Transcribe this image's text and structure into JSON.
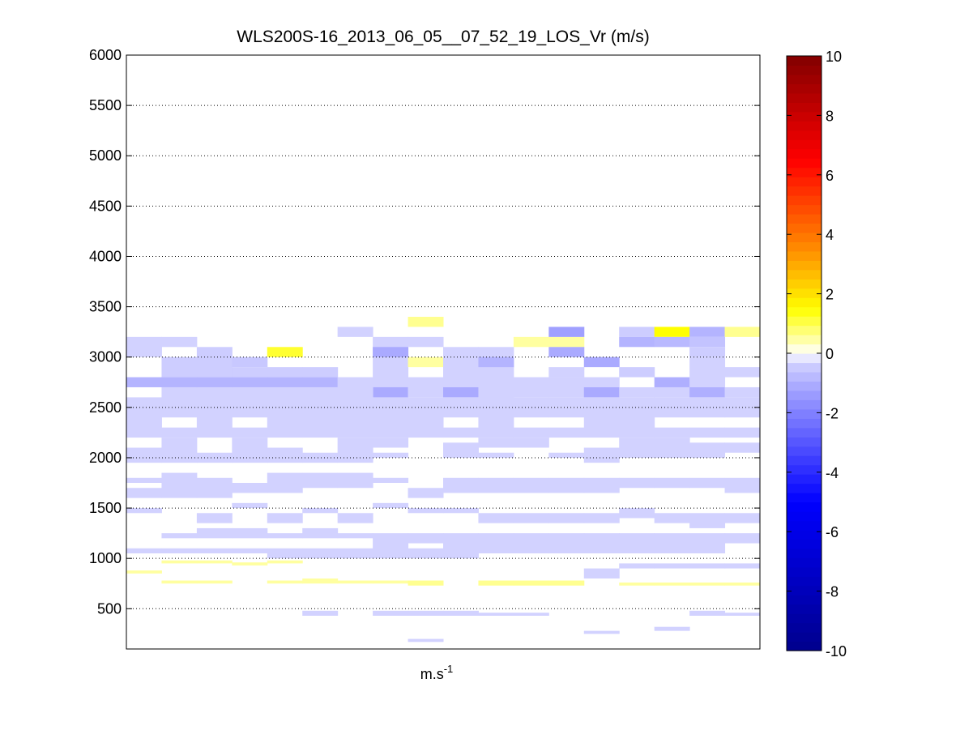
{
  "chart_data": {
    "type": "heatmap",
    "title": "WLS200S-16_2013_06_05__07_52_19_LOS_Vr (m/s)",
    "xlabel": {
      "base": "m.s",
      "superscript": "-1"
    },
    "ylabel": "",
    "ylim": [
      100,
      6000
    ],
    "yticks": [
      500,
      1000,
      1500,
      2000,
      2500,
      3000,
      3500,
      4000,
      4500,
      5000,
      5500,
      6000
    ],
    "y_grid": "dotted",
    "colorbar": {
      "range": [
        -10,
        10
      ],
      "ticks": [
        -10,
        -8,
        -6,
        -4,
        -2,
        0,
        2,
        4,
        6,
        8,
        10
      ],
      "position": "right",
      "colormap": "blue-white-yellow-red (jet-like, white at 0)"
    },
    "columns": 18,
    "series": [
      {
        "col": 0,
        "y0": 3000,
        "y1": 3200,
        "v": -0.3
      },
      {
        "col": 1,
        "y0": 3100,
        "y1": 3200,
        "v": -0.3
      },
      {
        "col": 0,
        "y0": 2700,
        "y1": 2800,
        "v": -0.9
      },
      {
        "col": 1,
        "y0": 2700,
        "y1": 2800,
        "v": -0.9
      },
      {
        "col": 2,
        "y0": 2700,
        "y1": 2800,
        "v": -0.9
      },
      {
        "col": 3,
        "y0": 2700,
        "y1": 2800,
        "v": -0.9
      },
      {
        "col": 4,
        "y0": 2700,
        "y1": 2800,
        "v": -0.9
      },
      {
        "col": 5,
        "y0": 2700,
        "y1": 2800,
        "v": -0.9
      },
      {
        "col": 1,
        "y0": 2800,
        "y1": 3000,
        "v": -0.4
      },
      {
        "col": 2,
        "y0": 2800,
        "y1": 3100,
        "v": -0.4
      },
      {
        "col": 3,
        "y0": 2800,
        "y1": 2900,
        "v": -0.4
      },
      {
        "col": 3,
        "y0": 2900,
        "y1": 3000,
        "v": -0.5
      },
      {
        "col": 4,
        "y0": 2800,
        "y1": 2900,
        "v": -0.4
      },
      {
        "col": 5,
        "y0": 2800,
        "y1": 2900,
        "v": -0.4
      },
      {
        "col": 4,
        "y0": 3000,
        "y1": 3100,
        "v": 1.2
      },
      {
        "col": 6,
        "y0": 2700,
        "y1": 2800,
        "v": -0.3
      },
      {
        "col": 6,
        "y0": 3200,
        "y1": 3300,
        "v": -0.3
      },
      {
        "col": 7,
        "y0": 2600,
        "y1": 3200,
        "v": -0.3
      },
      {
        "col": 7,
        "y0": 3000,
        "y1": 3100,
        "v": -1.1
      },
      {
        "col": 7,
        "y0": 2600,
        "y1": 2700,
        "v": -1.1
      },
      {
        "col": 8,
        "y0": 3300,
        "y1": 3400,
        "v": 0.6
      },
      {
        "col": 8,
        "y0": 2900,
        "y1": 3000,
        "v": 0.5
      },
      {
        "col": 8,
        "y0": 3100,
        "y1": 3200,
        "v": -0.3
      },
      {
        "col": 8,
        "y0": 2600,
        "y1": 2800,
        "v": -0.3
      },
      {
        "col": 9,
        "y0": 2700,
        "y1": 3100,
        "v": -0.3
      },
      {
        "col": 9,
        "y0": 2600,
        "y1": 2700,
        "v": -1.1
      },
      {
        "col": 10,
        "y0": 2700,
        "y1": 3100,
        "v": -0.3
      },
      {
        "col": 10,
        "y0": 2900,
        "y1": 3000,
        "v": -0.9
      },
      {
        "col": 11,
        "y0": 3100,
        "y1": 3200,
        "v": 0.5
      },
      {
        "col": 11,
        "y0": 2600,
        "y1": 2800,
        "v": -0.3
      },
      {
        "col": 12,
        "y0": 3100,
        "y1": 3200,
        "v": 0.5
      },
      {
        "col": 12,
        "y0": 3200,
        "y1": 3300,
        "v": -1.3
      },
      {
        "col": 12,
        "y0": 3000,
        "y1": 3100,
        "v": -1.1
      },
      {
        "col": 12,
        "y0": 2800,
        "y1": 2900,
        "v": -0.3
      },
      {
        "col": 12,
        "y0": 2600,
        "y1": 2800,
        "v": -0.3
      },
      {
        "col": 13,
        "y0": 2900,
        "y1": 3000,
        "v": -1.1
      },
      {
        "col": 13,
        "y0": 2700,
        "y1": 2800,
        "v": -0.3
      },
      {
        "col": 13,
        "y0": 2600,
        "y1": 2700,
        "v": -1.1
      },
      {
        "col": 14,
        "y0": 3200,
        "y1": 3300,
        "v": -0.4
      },
      {
        "col": 14,
        "y0": 3100,
        "y1": 3200,
        "v": -0.9
      },
      {
        "col": 14,
        "y0": 2800,
        "y1": 2900,
        "v": -0.4
      },
      {
        "col": 14,
        "y0": 2600,
        "y1": 2700,
        "v": -0.3
      },
      {
        "col": 15,
        "y0": 3200,
        "y1": 3300,
        "v": 1.5
      },
      {
        "col": 15,
        "y0": 3100,
        "y1": 3200,
        "v": -0.8
      },
      {
        "col": 15,
        "y0": 2700,
        "y1": 2800,
        "v": -1.0
      },
      {
        "col": 15,
        "y0": 2600,
        "y1": 2700,
        "v": -0.3
      },
      {
        "col": 16,
        "y0": 3200,
        "y1": 3300,
        "v": -0.9
      },
      {
        "col": 16,
        "y0": 3100,
        "y1": 3200,
        "v": -0.6
      },
      {
        "col": 16,
        "y0": 3000,
        "y1": 3100,
        "v": -0.4
      },
      {
        "col": 16,
        "y0": 2700,
        "y1": 3000,
        "v": -0.3
      },
      {
        "col": 16,
        "y0": 2600,
        "y1": 2700,
        "v": -1.0
      },
      {
        "col": 17,
        "y0": 3200,
        "y1": 3300,
        "v": 0.6
      },
      {
        "col": 17,
        "y0": 2800,
        "y1": 2900,
        "v": -0.3
      },
      {
        "col": 17,
        "y0": 2600,
        "y1": 2700,
        "v": -0.3
      },
      {
        "col": 0,
        "y0": 2200,
        "y1": 2600,
        "v": -0.3
      },
      {
        "col": 1,
        "y0": 2200,
        "y1": 2300,
        "v": -0.3
      },
      {
        "col": 1,
        "y0": 2400,
        "y1": 2700,
        "v": -0.3
      },
      {
        "col": 2,
        "y0": 2200,
        "y1": 2700,
        "v": -0.3
      },
      {
        "col": 3,
        "y0": 2200,
        "y1": 2300,
        "v": -0.3
      },
      {
        "col": 3,
        "y0": 2400,
        "y1": 2700,
        "v": -0.3
      },
      {
        "col": 4,
        "y0": 2200,
        "y1": 2700,
        "v": -0.3
      },
      {
        "col": 5,
        "y0": 2200,
        "y1": 2700,
        "v": -0.3
      },
      {
        "col": 6,
        "y0": 2200,
        "y1": 2700,
        "v": -0.3
      },
      {
        "col": 7,
        "y0": 2200,
        "y1": 2600,
        "v": -0.3
      },
      {
        "col": 8,
        "y0": 2200,
        "y1": 2600,
        "v": -0.3
      },
      {
        "col": 9,
        "y0": 2200,
        "y1": 2300,
        "v": -0.3
      },
      {
        "col": 9,
        "y0": 2400,
        "y1": 2600,
        "v": -0.3
      },
      {
        "col": 10,
        "y0": 2200,
        "y1": 2700,
        "v": -0.3
      },
      {
        "col": 11,
        "y0": 2200,
        "y1": 2300,
        "v": -0.3
      },
      {
        "col": 11,
        "y0": 2400,
        "y1": 2600,
        "v": -0.3
      },
      {
        "col": 12,
        "y0": 2200,
        "y1": 2300,
        "v": -0.3
      },
      {
        "col": 12,
        "y0": 2400,
        "y1": 2500,
        "v": -0.3
      },
      {
        "col": 12,
        "y0": 2500,
        "y1": 2600,
        "v": -0.3
      },
      {
        "col": 13,
        "y0": 2200,
        "y1": 2600,
        "v": -0.3
      },
      {
        "col": 14,
        "y0": 2200,
        "y1": 2600,
        "v": -0.3
      },
      {
        "col": 15,
        "y0": 2200,
        "y1": 2300,
        "v": -0.3
      },
      {
        "col": 15,
        "y0": 2400,
        "y1": 2600,
        "v": -0.3
      },
      {
        "col": 16,
        "y0": 2200,
        "y1": 2300,
        "v": -0.3
      },
      {
        "col": 16,
        "y0": 2400,
        "y1": 2600,
        "v": -0.3
      },
      {
        "col": 17,
        "y0": 2200,
        "y1": 2300,
        "v": -0.3
      },
      {
        "col": 17,
        "y0": 2400,
        "y1": 2600,
        "v": -0.3
      },
      {
        "col": 0,
        "y0": 1950,
        "y1": 2100,
        "v": -0.3
      },
      {
        "col": 1,
        "y0": 1950,
        "y1": 2200,
        "v": -0.3
      },
      {
        "col": 2,
        "y0": 1950,
        "y1": 2050,
        "v": -0.3
      },
      {
        "col": 3,
        "y0": 1950,
        "y1": 2200,
        "v": -0.3
      },
      {
        "col": 4,
        "y0": 1950,
        "y1": 2100,
        "v": -0.3
      },
      {
        "col": 5,
        "y0": 1950,
        "y1": 2050,
        "v": -0.3
      },
      {
        "col": 6,
        "y0": 1950,
        "y1": 2200,
        "v": -0.3
      },
      {
        "col": 7,
        "y0": 2000,
        "y1": 2050,
        "v": -0.3
      },
      {
        "col": 7,
        "y0": 2100,
        "y1": 2200,
        "v": -0.3
      },
      {
        "col": 9,
        "y0": 2000,
        "y1": 2150,
        "v": -0.3
      },
      {
        "col": 10,
        "y0": 2000,
        "y1": 2050,
        "v": -0.3
      },
      {
        "col": 10,
        "y0": 2100,
        "y1": 2200,
        "v": -0.3
      },
      {
        "col": 11,
        "y0": 2100,
        "y1": 2200,
        "v": -0.3
      },
      {
        "col": 12,
        "y0": 2000,
        "y1": 2050,
        "v": -0.3
      },
      {
        "col": 13,
        "y0": 1950,
        "y1": 2100,
        "v": -0.3
      },
      {
        "col": 14,
        "y0": 2000,
        "y1": 2200,
        "v": -0.3
      },
      {
        "col": 15,
        "y0": 2000,
        "y1": 2200,
        "v": -0.3
      },
      {
        "col": 16,
        "y0": 2000,
        "y1": 2150,
        "v": -0.3
      },
      {
        "col": 17,
        "y0": 2050,
        "y1": 2150,
        "v": -0.3
      },
      {
        "col": 0,
        "y0": 1600,
        "y1": 1700,
        "v": -0.3
      },
      {
        "col": 0,
        "y0": 1750,
        "y1": 1800,
        "v": -0.3
      },
      {
        "col": 1,
        "y0": 1600,
        "y1": 1850,
        "v": -0.3
      },
      {
        "col": 2,
        "y0": 1600,
        "y1": 1800,
        "v": -0.3
      },
      {
        "col": 3,
        "y0": 1650,
        "y1": 1750,
        "v": -0.3
      },
      {
        "col": 4,
        "y0": 1650,
        "y1": 1850,
        "v": -0.3
      },
      {
        "col": 5,
        "y0": 1700,
        "y1": 1850,
        "v": -0.3
      },
      {
        "col": 6,
        "y0": 1700,
        "y1": 1850,
        "v": -0.3
      },
      {
        "col": 7,
        "y0": 1750,
        "y1": 1800,
        "v": -0.3
      },
      {
        "col": 8,
        "y0": 1600,
        "y1": 1700,
        "v": -0.3
      },
      {
        "col": 9,
        "y0": 1650,
        "y1": 1800,
        "v": -0.3
      },
      {
        "col": 10,
        "y0": 1650,
        "y1": 1800,
        "v": -0.3
      },
      {
        "col": 11,
        "y0": 1650,
        "y1": 1800,
        "v": -0.3
      },
      {
        "col": 12,
        "y0": 1650,
        "y1": 1800,
        "v": -0.3
      },
      {
        "col": 13,
        "y0": 1650,
        "y1": 1800,
        "v": -0.3
      },
      {
        "col": 14,
        "y0": 1700,
        "y1": 1800,
        "v": -0.3
      },
      {
        "col": 15,
        "y0": 1700,
        "y1": 1800,
        "v": -0.3
      },
      {
        "col": 16,
        "y0": 1700,
        "y1": 1800,
        "v": -0.3
      },
      {
        "col": 17,
        "y0": 1650,
        "y1": 1800,
        "v": -0.3
      },
      {
        "col": 0,
        "y0": 1450,
        "y1": 1500,
        "v": -0.3
      },
      {
        "col": 2,
        "y0": 1350,
        "y1": 1450,
        "v": -0.3
      },
      {
        "col": 3,
        "y0": 1500,
        "y1": 1550,
        "v": -0.3
      },
      {
        "col": 4,
        "y0": 1350,
        "y1": 1450,
        "v": -0.3
      },
      {
        "col": 5,
        "y0": 1450,
        "y1": 1500,
        "v": -0.3
      },
      {
        "col": 6,
        "y0": 1350,
        "y1": 1450,
        "v": -0.3
      },
      {
        "col": 7,
        "y0": 1500,
        "y1": 1550,
        "v": -0.3
      },
      {
        "col": 8,
        "y0": 1450,
        "y1": 1500,
        "v": -0.3
      },
      {
        "col": 9,
        "y0": 1450,
        "y1": 1500,
        "v": -0.3
      },
      {
        "col": 10,
        "y0": 1350,
        "y1": 1450,
        "v": -0.3
      },
      {
        "col": 11,
        "y0": 1350,
        "y1": 1450,
        "v": -0.3
      },
      {
        "col": 12,
        "y0": 1350,
        "y1": 1450,
        "v": -0.3
      },
      {
        "col": 13,
        "y0": 1350,
        "y1": 1450,
        "v": -0.3
      },
      {
        "col": 14,
        "y0": 1400,
        "y1": 1500,
        "v": -0.3
      },
      {
        "col": 15,
        "y0": 1350,
        "y1": 1450,
        "v": -0.3
      },
      {
        "col": 16,
        "y0": 1300,
        "y1": 1450,
        "v": -0.3
      },
      {
        "col": 17,
        "y0": 1350,
        "y1": 1450,
        "v": -0.3
      },
      {
        "col": 0,
        "y0": 1050,
        "y1": 1100,
        "v": -0.3
      },
      {
        "col": 1,
        "y0": 1050,
        "y1": 1100,
        "v": -0.3
      },
      {
        "col": 1,
        "y0": 1200,
        "y1": 1250,
        "v": -0.3
      },
      {
        "col": 2,
        "y0": 1050,
        "y1": 1100,
        "v": -0.3
      },
      {
        "col": 2,
        "y0": 1200,
        "y1": 1300,
        "v": -0.3
      },
      {
        "col": 3,
        "y0": 1050,
        "y1": 1100,
        "v": -0.3
      },
      {
        "col": 3,
        "y0": 1200,
        "y1": 1300,
        "v": -0.3
      },
      {
        "col": 4,
        "y0": 1000,
        "y1": 1100,
        "v": -0.3
      },
      {
        "col": 4,
        "y0": 1200,
        "y1": 1250,
        "v": -0.3
      },
      {
        "col": 5,
        "y0": 1000,
        "y1": 1100,
        "v": -0.3
      },
      {
        "col": 5,
        "y0": 1200,
        "y1": 1300,
        "v": -0.3
      },
      {
        "col": 6,
        "y0": 1000,
        "y1": 1100,
        "v": -0.3
      },
      {
        "col": 6,
        "y0": 1200,
        "y1": 1250,
        "v": -0.3
      },
      {
        "col": 7,
        "y0": 1000,
        "y1": 1250,
        "v": -0.3
      },
      {
        "col": 8,
        "y0": 1000,
        "y1": 1100,
        "v": -0.3
      },
      {
        "col": 8,
        "y0": 1150,
        "y1": 1250,
        "v": -0.3
      },
      {
        "col": 9,
        "y0": 1000,
        "y1": 1250,
        "v": -0.3
      },
      {
        "col": 10,
        "y0": 1050,
        "y1": 1250,
        "v": -0.3
      },
      {
        "col": 11,
        "y0": 1050,
        "y1": 1250,
        "v": -0.3
      },
      {
        "col": 12,
        "y0": 1050,
        "y1": 1250,
        "v": -0.3
      },
      {
        "col": 13,
        "y0": 1050,
        "y1": 1250,
        "v": -0.3
      },
      {
        "col": 14,
        "y0": 1050,
        "y1": 1250,
        "v": -0.3
      },
      {
        "col": 15,
        "y0": 1050,
        "y1": 1250,
        "v": -0.3
      },
      {
        "col": 16,
        "y0": 1050,
        "y1": 1250,
        "v": -0.3
      },
      {
        "col": 17,
        "y0": 1150,
        "y1": 1250,
        "v": -0.3
      },
      {
        "col": 0,
        "y0": 850,
        "y1": 880,
        "v": 0.5
      },
      {
        "col": 1,
        "y0": 950,
        "y1": 980,
        "v": 0.5
      },
      {
        "col": 1,
        "y0": 750,
        "y1": 780,
        "v": 0.5
      },
      {
        "col": 2,
        "y0": 950,
        "y1": 980,
        "v": 0.5
      },
      {
        "col": 2,
        "y0": 750,
        "y1": 780,
        "v": 0.5
      },
      {
        "col": 3,
        "y0": 930,
        "y1": 960,
        "v": 0.5
      },
      {
        "col": 4,
        "y0": 950,
        "y1": 980,
        "v": 0.5
      },
      {
        "col": 4,
        "y0": 750,
        "y1": 780,
        "v": 0.5
      },
      {
        "col": 5,
        "y0": 750,
        "y1": 800,
        "v": 0.5
      },
      {
        "col": 6,
        "y0": 750,
        "y1": 780,
        "v": 0.5
      },
      {
        "col": 7,
        "y0": 750,
        "y1": 780,
        "v": 0.5
      },
      {
        "col": 8,
        "y0": 730,
        "y1": 780,
        "v": 0.6
      },
      {
        "col": 10,
        "y0": 730,
        "y1": 780,
        "v": 0.6
      },
      {
        "col": 11,
        "y0": 730,
        "y1": 780,
        "v": 0.6
      },
      {
        "col": 12,
        "y0": 730,
        "y1": 780,
        "v": 0.6
      },
      {
        "col": 14,
        "y0": 730,
        "y1": 760,
        "v": 0.5
      },
      {
        "col": 15,
        "y0": 730,
        "y1": 760,
        "v": 0.5
      },
      {
        "col": 16,
        "y0": 730,
        "y1": 760,
        "v": 0.5
      },
      {
        "col": 17,
        "y0": 730,
        "y1": 760,
        "v": 0.5
      },
      {
        "col": 13,
        "y0": 800,
        "y1": 900,
        "v": -0.3
      },
      {
        "col": 14,
        "y0": 900,
        "y1": 950,
        "v": -0.3
      },
      {
        "col": 15,
        "y0": 900,
        "y1": 950,
        "v": -0.3
      },
      {
        "col": 16,
        "y0": 900,
        "y1": 950,
        "v": -0.3
      },
      {
        "col": 17,
        "y0": 900,
        "y1": 950,
        "v": -0.3
      },
      {
        "col": 5,
        "y0": 430,
        "y1": 480,
        "v": -0.3
      },
      {
        "col": 7,
        "y0": 430,
        "y1": 480,
        "v": -0.3
      },
      {
        "col": 8,
        "y0": 430,
        "y1": 480,
        "v": -0.3
      },
      {
        "col": 9,
        "y0": 430,
        "y1": 480,
        "v": -0.3
      },
      {
        "col": 10,
        "y0": 430,
        "y1": 460,
        "v": -0.3
      },
      {
        "col": 11,
        "y0": 430,
        "y1": 460,
        "v": -0.3
      },
      {
        "col": 13,
        "y0": 250,
        "y1": 280,
        "v": -0.3
      },
      {
        "col": 15,
        "y0": 280,
        "y1": 320,
        "v": -0.3
      },
      {
        "col": 16,
        "y0": 430,
        "y1": 480,
        "v": -0.3
      },
      {
        "col": 17,
        "y0": 430,
        "y1": 460,
        "v": -0.3
      },
      {
        "col": 8,
        "y0": 170,
        "y1": 200,
        "v": -0.3
      }
    ]
  }
}
